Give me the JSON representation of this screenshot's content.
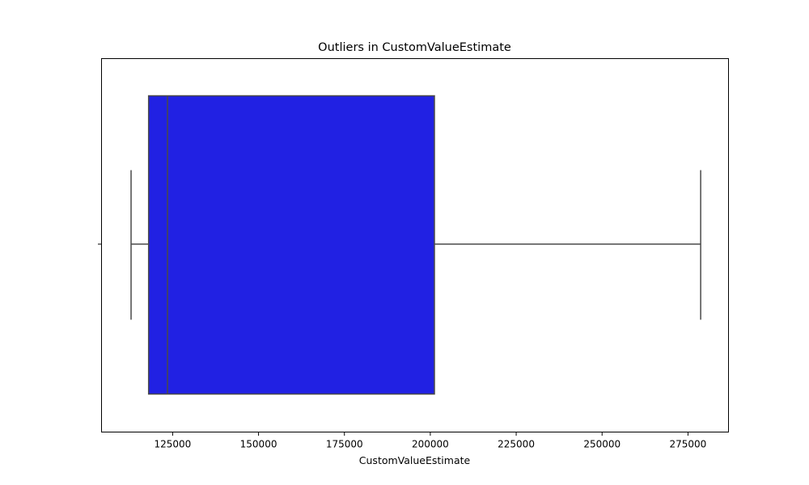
{
  "chart_data": {
    "type": "box",
    "title": "Outliers in CustomValueEstimate",
    "xlabel": "CustomValueEstimate",
    "ylabel": "",
    "orientation": "horizontal",
    "xlim": [
      104300,
      286800
    ],
    "xticks": [
      125000,
      150000,
      175000,
      200000,
      225000,
      250000,
      275000
    ],
    "xtick_labels": [
      "125000",
      "150000",
      "175000",
      "200000",
      "225000",
      "250000",
      "275000"
    ],
    "box": {
      "whisker_low": 112900,
      "q1": 118000,
      "median": 123500,
      "q3": 201200,
      "whisker_high": 278700
    },
    "outliers": [],
    "grid": false,
    "colors": {
      "box_fill": "#2121e3",
      "box_edge": "#4a4a4a",
      "whisker": "#4a4a4a",
      "axes": "#000000"
    }
  }
}
